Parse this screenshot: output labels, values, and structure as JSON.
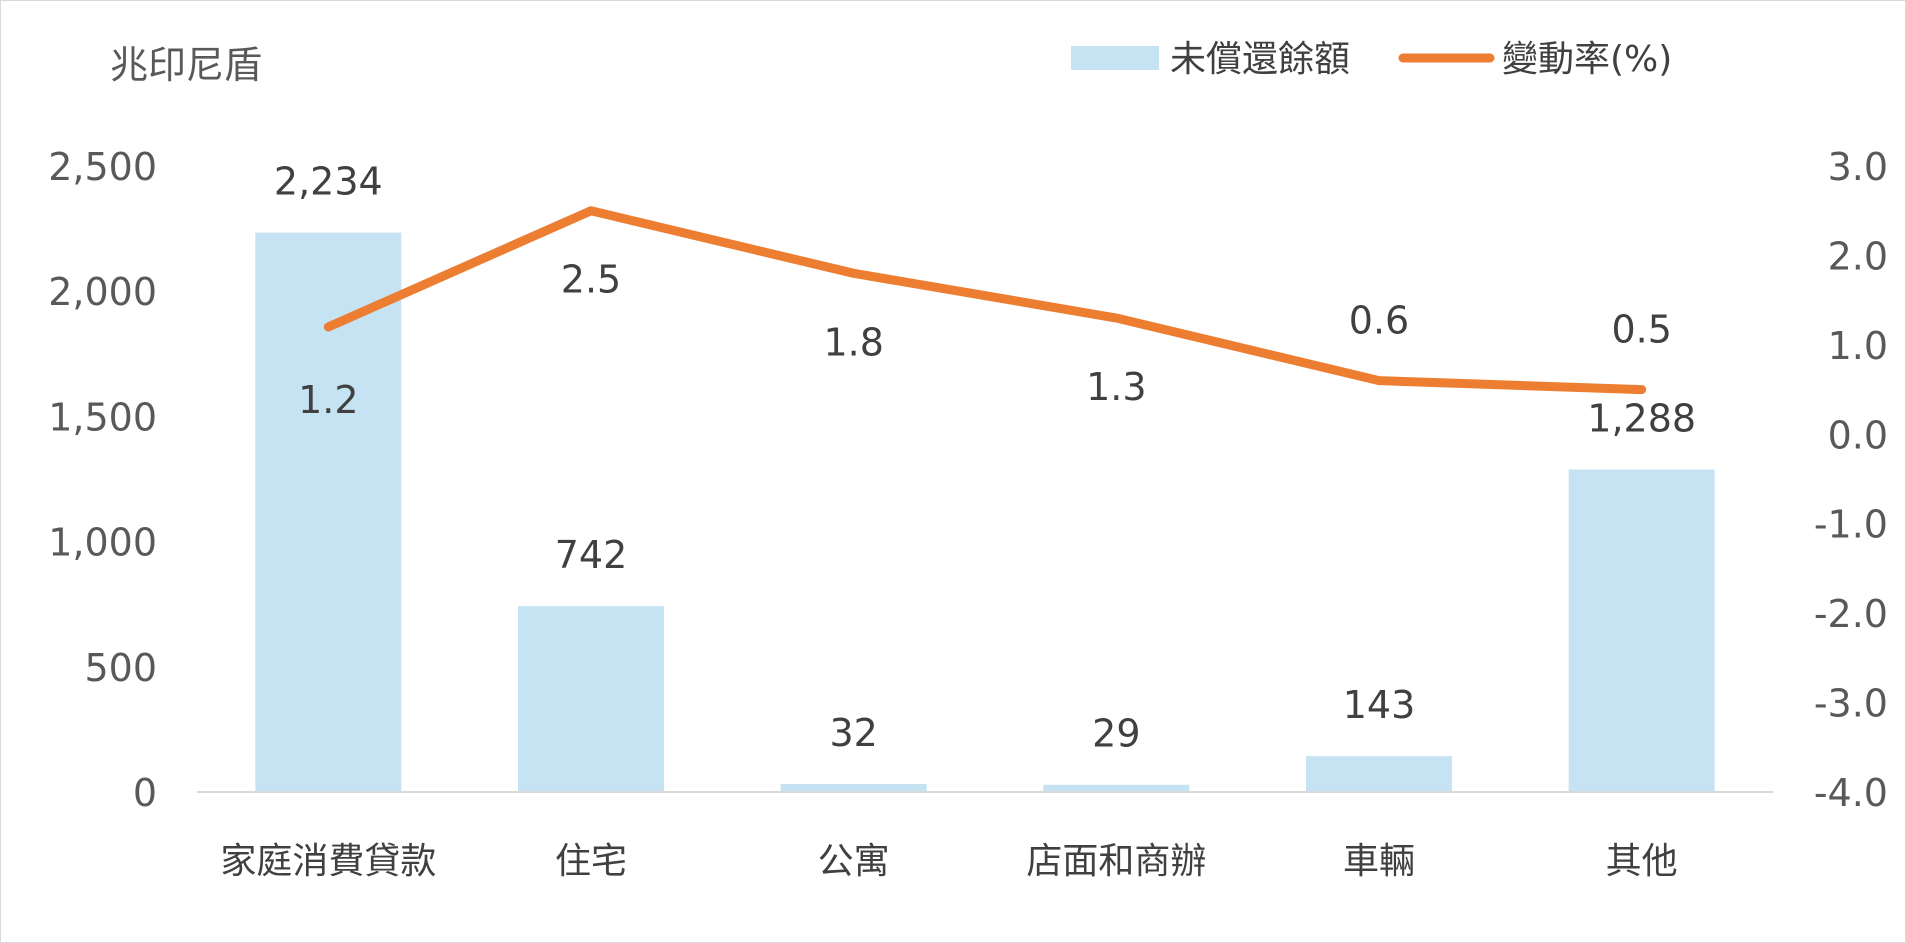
{
  "chart_data": {
    "type": "bar",
    "unit_label": "兆印尼盾",
    "categories": [
      "家庭消費貸款",
      "住宅",
      "公寓",
      "店面和商辦",
      "車輛",
      "其他"
    ],
    "series": [
      {
        "name": "未償還餘額",
        "type": "bar",
        "axis": "left",
        "values": [
          2234,
          742,
          32,
          29,
          143,
          1288
        ],
        "labels": [
          "2,234",
          "742",
          "32",
          "29",
          "143",
          "1,288"
        ],
        "color": "#c5e3f3"
      },
      {
        "name": "變動率(%)",
        "type": "line",
        "axis": "right",
        "values": [
          1.2,
          2.5,
          1.8,
          1.3,
          0.6,
          0.5
        ],
        "labels": [
          "1.2",
          "2.5",
          "1.8",
          "1.3",
          "0.6",
          "0.5"
        ],
        "color": "#ed7d31"
      }
    ],
    "y_left": {
      "range": [
        0,
        2500
      ],
      "ticks": [
        0,
        500,
        1000,
        1500,
        2000,
        2500
      ],
      "tick_labels": [
        "0",
        "500",
        "1,000",
        "1,500",
        "2,000",
        "2,500"
      ]
    },
    "y_right": {
      "range": [
        -4.0,
        3.0
      ],
      "ticks": [
        -4,
        -3,
        -2,
        -1,
        0,
        1,
        2,
        3
      ],
      "tick_labels": [
        "-4.0",
        "-3.0",
        "-2.0",
        "-1.0",
        "0.0",
        "1.0",
        "2.0",
        "3.0"
      ]
    },
    "grid": false,
    "legend": "top-right",
    "axis_color": "#d9d9d9"
  }
}
